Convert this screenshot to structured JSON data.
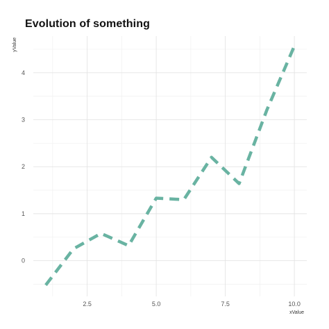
{
  "chart_data": {
    "type": "line",
    "title": "Evolution of something",
    "xlabel": "xValue",
    "ylabel": "yValue",
    "x": [
      1,
      2,
      3,
      4,
      5,
      6,
      7,
      8,
      9,
      10
    ],
    "series": [
      {
        "values": [
          -0.52,
          0.25,
          0.58,
          0.32,
          1.33,
          1.3,
          2.2,
          1.64,
          3.2,
          4.57
        ]
      }
    ],
    "xticks": [
      2.5,
      5.0,
      7.5,
      10.0
    ],
    "xtick_labels": [
      "2.5",
      "5.0",
      "7.5",
      "10.0"
    ],
    "yticks": [
      0,
      1,
      2,
      3,
      4
    ],
    "ytick_labels": [
      "0",
      "1",
      "2",
      "3",
      "4"
    ],
    "xlim": [
      0.55,
      10.45
    ],
    "ylim": [
      -0.76,
      4.78
    ],
    "line_color": "#69b3a2",
    "line_style": "dashed",
    "grid": true,
    "legend": "none"
  }
}
